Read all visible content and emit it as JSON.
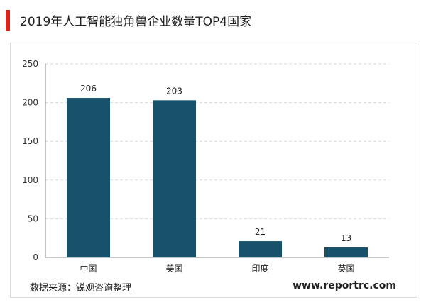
{
  "header": {
    "title": "2019年人工智能独角兽企业数量TOP4国家"
  },
  "footer": {
    "source": "数据来源：锐观咨询整理",
    "website": "www.reportrc.com"
  },
  "colors": {
    "bar": "#17526a",
    "accent": "#d9251c",
    "grid": "#d9d9d9"
  },
  "chart_data": {
    "type": "bar",
    "title": "2019年人工智能独角兽企业数量TOP4国家",
    "xlabel": "",
    "ylabel": "",
    "categories": [
      "中国",
      "美国",
      "印度",
      "英国"
    ],
    "values": [
      206,
      203,
      21,
      13
    ],
    "data_labels": [
      "206",
      "203",
      "21",
      "13"
    ],
    "ylim": [
      0,
      250
    ],
    "yticks": [
      0,
      50,
      100,
      150,
      200,
      250
    ],
    "grid": true,
    "grid_style": "dashed",
    "legend": "none"
  }
}
